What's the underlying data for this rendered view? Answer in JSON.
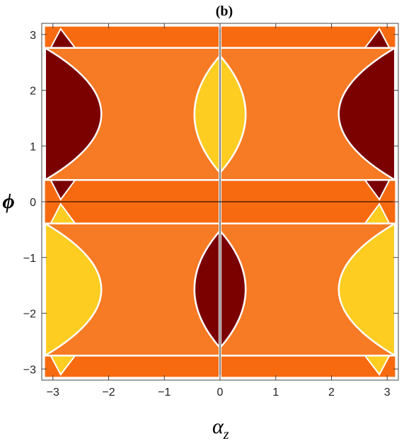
{
  "chart_data": {
    "type": "heatmap",
    "title": "(b)",
    "xlabel": "α",
    "xlabel_sub": "z",
    "ylabel": "ϕ",
    "xlim": [
      -3.2,
      3.2
    ],
    "ylim": [
      -3.2,
      3.2
    ],
    "x_ticks": [
      -3,
      -2,
      -1,
      0,
      1,
      2,
      3
    ],
    "y_ticks": [
      -3,
      -2,
      -1,
      0,
      1,
      2,
      3
    ],
    "x_tick_labels": [
      "−3",
      "−2",
      "−1",
      "0",
      "1",
      "2",
      "3"
    ],
    "y_tick_labels": [
      "−3",
      "−2",
      "−1",
      "0",
      "1",
      "2",
      "3"
    ],
    "grid": false,
    "colors": {
      "base": "#f86a10",
      "band": "#f77a24",
      "dark": "#7b0000",
      "light": "#fdcd22",
      "contour": "#ffffff"
    },
    "horizontal_contours": [
      2.76,
      0.39,
      -0.39,
      -2.76
    ],
    "regions": [
      {
        "name": "dark-left-upper",
        "color": "dark",
        "x_edge": -3.14,
        "vertex": [
          -2.13,
          1.57
        ],
        "y_range": [
          0.39,
          2.76
        ]
      },
      {
        "name": "dark-right-upper",
        "color": "dark",
        "x_edge": 3.14,
        "vertex": [
          2.13,
          1.57
        ],
        "y_range": [
          0.39,
          2.76
        ]
      },
      {
        "name": "light-left-lower",
        "color": "light",
        "x_edge": -3.14,
        "vertex": [
          -2.13,
          -1.57
        ],
        "y_range": [
          -2.76,
          -0.39
        ]
      },
      {
        "name": "light-right-lower",
        "color": "light",
        "x_edge": 3.14,
        "vertex": [
          2.13,
          -1.57
        ],
        "y_range": [
          -2.76,
          -0.39
        ]
      },
      {
        "name": "light-center-upper",
        "color": "light",
        "center": [
          0,
          1.57
        ],
        "half_width": 0.46,
        "y_range": [
          0.52,
          2.62
        ]
      },
      {
        "name": "dark-center-lower",
        "color": "dark",
        "center": [
          0,
          -1.57
        ],
        "half_width": 0.46,
        "y_range": [
          -2.62,
          -0.52
        ]
      }
    ]
  }
}
